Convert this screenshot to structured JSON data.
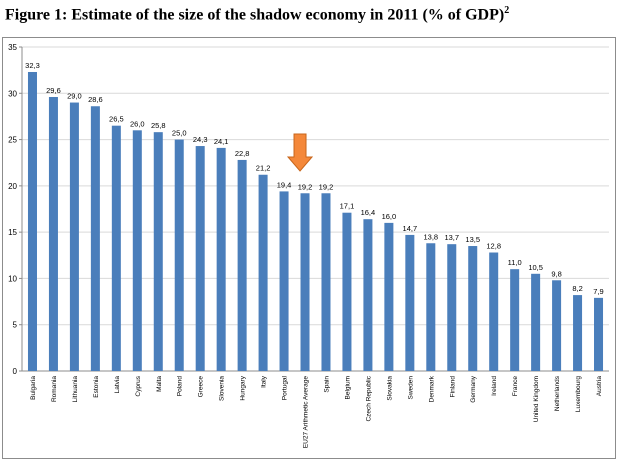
{
  "figure": {
    "title": "Figure 1: Estimate of the size of the shadow economy in 2011 (% of GDP)",
    "footnote": "2"
  },
  "colors": {
    "bar": "#4a7ebb",
    "arrow": "#f4883a",
    "arrow_stroke": "#c8661b",
    "grid": "#d9d9d9",
    "axis": "#8c8c8c"
  },
  "chart_data": {
    "type": "bar",
    "title": "Estimate of the size of the shadow economy in 2011 (% of GDP)",
    "xlabel": "",
    "ylabel": "",
    "ylim": [
      0,
      35
    ],
    "yticks": [
      0,
      5,
      10,
      15,
      20,
      25,
      30,
      35
    ],
    "grid": true,
    "categories": [
      "Bulgaria",
      "Romania",
      "Lithuania",
      "Estonia",
      "Latvia",
      "Cyprus",
      "Malta",
      "Poland",
      "Greece",
      "Slovenia",
      "Hungary",
      "Italy",
      "Portugal",
      "EU27 Arithmetic Average",
      "Spain",
      "Belgium",
      "Czech Republic",
      "Slovakia",
      "Sweden",
      "Denmark",
      "Finland",
      "Germany",
      "Ireland",
      "France",
      "United Kingdom",
      "Netherlands",
      "Luxembourg",
      "Austria"
    ],
    "values": [
      32.3,
      29.6,
      29.0,
      28.6,
      26.5,
      26.0,
      25.8,
      25.0,
      24.3,
      24.1,
      22.8,
      21.2,
      19.4,
      19.2,
      19.2,
      17.1,
      16.4,
      16.0,
      14.7,
      13.8,
      13.7,
      13.5,
      12.8,
      11.0,
      10.5,
      9.8,
      8.2,
      7.9
    ],
    "data_labels": [
      "32,3",
      "29,6",
      "29,0",
      "28,6",
      "26,5",
      "26,0",
      "25,8",
      "25,0",
      "24,3",
      "24,1",
      "22,8",
      "21,2",
      "19,4",
      "19,2",
      "19,2",
      "17,1",
      "16,4",
      "16,0",
      "14,7",
      "13,8",
      "13,7",
      "13,5",
      "12,8",
      "11,0",
      "10,5",
      "9,8",
      "8,2",
      "7,9"
    ],
    "annotations": [
      {
        "type": "arrow-down",
        "category": "EU27 Arithmetic Average"
      }
    ]
  }
}
